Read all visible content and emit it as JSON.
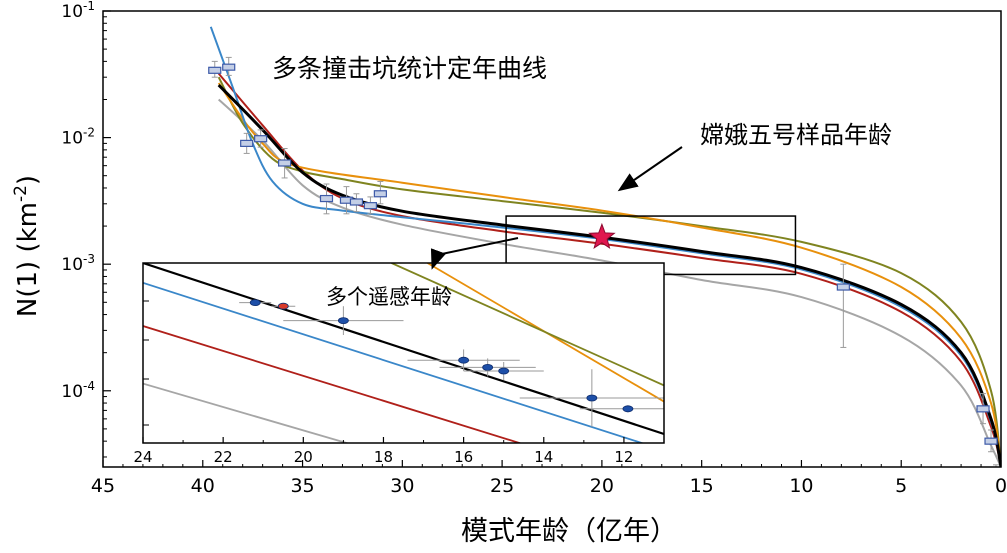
{
  "chart_data": [
    {
      "type": "line",
      "title": "",
      "xlabel": "模式年龄（亿年）",
      "ylabel": "N(1) (km-2)",
      "y_scale": "log",
      "x_reversed": true,
      "xlim": [
        45,
        0
      ],
      "ylim": [
        2.5e-05,
        0.1
      ],
      "x_ticks": [
        "45",
        "40",
        "35",
        "30",
        "25",
        "20",
        "15",
        "10",
        "5",
        "0"
      ],
      "y_ticks": [
        {
          "value": 0.1,
          "base": "10",
          "exp": "-1"
        },
        {
          "value": 0.01,
          "base": "10",
          "exp": "-2"
        },
        {
          "value": 0.001,
          "base": "10",
          "exp": "-3"
        },
        {
          "value": 0.0001,
          "base": "10",
          "exp": "-4"
        }
      ],
      "colors": {
        "black": "#000000",
        "blue": "#3a87c9",
        "red": "#b0201a",
        "orange": "#e8900c",
        "olive": "#7f8420",
        "gray": "#a6a6a6",
        "marker_fill": "#c4cfe6",
        "marker_stroke": "#3d5aa8",
        "star": "#e0174f"
      },
      "series": [
        {
          "color_key": "black",
          "x": [
            39.2,
            37,
            35,
            33,
            30,
            25,
            20,
            15,
            10,
            5,
            2,
            0.5,
            0
          ],
          "y": [
            0.026,
            0.0115,
            0.0053,
            0.0035,
            0.00262,
            0.00204,
            0.00163,
            0.00126,
            0.00094,
            0.00048,
            0.0002,
            6e-05,
            2.5e-05
          ]
        },
        {
          "color_key": "blue",
          "x": [
            39.6,
            38.5,
            37.5,
            36.5,
            35,
            33,
            30,
            25,
            20,
            15,
            10,
            5,
            2,
            0.5,
            0
          ],
          "y": [
            0.075,
            0.025,
            0.009,
            0.0045,
            0.003,
            0.00265,
            0.00235,
            0.00195,
            0.00158,
            0.00122,
            0.00091,
            0.00046,
            0.00019,
            5.7e-05,
            2.5e-05
          ]
        },
        {
          "color_key": "red",
          "x": [
            39.2,
            37,
            35,
            33,
            30,
            25,
            20,
            15,
            10,
            5,
            2,
            0.5,
            0
          ],
          "y": [
            0.032,
            0.0125,
            0.0055,
            0.0033,
            0.0024,
            0.00182,
            0.00145,
            0.00112,
            0.00084,
            0.00042,
            0.00017,
            5.2e-05,
            2.5e-05
          ]
        },
        {
          "color_key": "orange",
          "x": [
            39.2,
            38,
            37,
            36,
            34,
            30,
            25,
            20,
            15,
            10,
            5,
            2,
            0.5,
            0
          ],
          "y": [
            0.027,
            0.014,
            0.009,
            0.0065,
            0.0054,
            0.0044,
            0.0034,
            0.00265,
            0.00195,
            0.00135,
            0.00066,
            0.00026,
            8e-05,
            2.5e-05
          ]
        },
        {
          "color_key": "olive",
          "x": [
            39.2,
            38,
            36.5,
            35,
            33,
            30,
            25,
            20,
            15,
            10,
            5,
            2,
            0.5,
            0
          ],
          "y": [
            0.03,
            0.013,
            0.0068,
            0.0054,
            0.0047,
            0.0039,
            0.00315,
            0.00255,
            0.002,
            0.0015,
            0.00085,
            0.00035,
            0.0001,
            2.5e-05
          ]
        },
        {
          "color_key": "gray",
          "x": [
            39.2,
            37,
            35,
            33,
            30,
            25,
            20,
            15,
            10,
            5,
            2,
            0.5,
            0
          ],
          "y": [
            0.02,
            0.0095,
            0.0042,
            0.0028,
            0.00205,
            0.00145,
            0.00107,
            0.00075,
            0.00055,
            0.00027,
            0.00011,
            3.7e-05,
            2.5e-05
          ]
        }
      ],
      "data_points": [
        {
          "x": 39.4,
          "y": 0.034,
          "xerr": 0.2,
          "yerr_lo": 0.03,
          "yerr_hi": 0.04
        },
        {
          "x": 38.7,
          "y": 0.036,
          "xerr": 0.2,
          "yerr_lo": 0.031,
          "yerr_hi": 0.043
        },
        {
          "x": 37.8,
          "y": 0.009,
          "xerr": 0.2,
          "yerr_lo": 0.0075,
          "yerr_hi": 0.0108
        },
        {
          "x": 37.1,
          "y": 0.0098,
          "xerr": 0.2,
          "yerr_lo": 0.0084,
          "yerr_hi": 0.0115
        },
        {
          "x": 35.9,
          "y": 0.0063,
          "xerr": 0.2,
          "yerr_lo": 0.0048,
          "yerr_hi": 0.0082
        },
        {
          "x": 33.8,
          "y": 0.0033,
          "xerr": 0.2,
          "yerr_lo": 0.0025,
          "yerr_hi": 0.0043
        },
        {
          "x": 32.8,
          "y": 0.0032,
          "xerr": 0.2,
          "yerr_lo": 0.0025,
          "yerr_hi": 0.0041
        },
        {
          "x": 32.3,
          "y": 0.0031,
          "xerr": 0.2,
          "yerr_lo": 0.0026,
          "yerr_hi": 0.0036
        },
        {
          "x": 31.6,
          "y": 0.0029,
          "xerr": 0.2,
          "yerr_lo": 0.0025,
          "yerr_hi": 0.0034
        },
        {
          "x": 31.1,
          "y": 0.0036,
          "xerr": 0.2,
          "yerr_lo": 0.003,
          "yerr_hi": 0.0045
        },
        {
          "x": 7.9,
          "y": 0.00066,
          "xerr": 0.2,
          "yerr_lo": 0.00022,
          "yerr_hi": 0.001
        },
        {
          "x": 0.9,
          "y": 7.2e-05,
          "xerr": 0.2,
          "yerr_lo": 5.5e-05,
          "yerr_hi": 9.5e-05
        },
        {
          "x": 0.5,
          "y": 4e-05,
          "xerr": 0.2,
          "yerr_lo": 3.3e-05,
          "yerr_hi": 4.9e-05
        },
        {
          "x": 0.25,
          "y": 2.2e-05,
          "xerr": 0.2,
          "yerr_lo": 1.8e-05,
          "yerr_hi": 2.6e-05
        }
      ],
      "star": {
        "x": 20.0,
        "y": 0.00163
      },
      "zoom_box": {
        "x": [
          10.3,
          24.8
        ],
        "y": [
          0.00083,
          0.0024
        ]
      },
      "annotations": {
        "curves_label": "多条撞击坑统计定年曲线",
        "sample_age_label": "嫦娥五号样品年龄",
        "remote_sensing_label": "多个遥感年龄"
      }
    },
    {
      "type": "line",
      "title": "",
      "xlim": [
        24,
        11
      ],
      "ylim": [
        0,
        1
      ],
      "x_ticks": [
        "24",
        "22",
        "20",
        "18",
        "16",
        "14",
        "12"
      ],
      "series": [
        {
          "color_key": "black",
          "x": [
            24,
            11
          ],
          "y": [
            1.0,
            0.05
          ]
        },
        {
          "color_key": "blue",
          "x": [
            24,
            11
          ],
          "y": [
            0.89,
            -0.04
          ]
        },
        {
          "color_key": "red",
          "x": [
            24,
            11
          ],
          "y": [
            0.65,
            -0.25
          ]
        },
        {
          "color_key": "gray",
          "x": [
            24,
            18
          ],
          "y": [
            0.33,
            -0.06
          ]
        },
        {
          "color_key": "orange",
          "x": [
            16.9,
            11
          ],
          "y": [
            1.0,
            0.23
          ]
        },
        {
          "color_key": "olive",
          "x": [
            17.8,
            11
          ],
          "y": [
            1.0,
            0.32
          ]
        }
      ],
      "data_points": [
        {
          "x": 21.2,
          "y": 0.78,
          "xerr": 0.4,
          "yerr": 0.0,
          "color": "#1d4fa8"
        },
        {
          "x": 20.5,
          "y": 0.76,
          "xerr": 0.3,
          "yerr": 0.0,
          "color": "#d83a2a"
        },
        {
          "x": 19.0,
          "y": 0.68,
          "xerr": 1.5,
          "yerr": 0.08,
          "color": "#1d4fa8"
        },
        {
          "x": 16.0,
          "y": 0.46,
          "xerr": 1.4,
          "yerr": 0.06,
          "color": "#1d4fa8"
        },
        {
          "x": 15.4,
          "y": 0.42,
          "xerr": 1.2,
          "yerr": 0.05,
          "color": "#1d4fa8"
        },
        {
          "x": 15.0,
          "y": 0.4,
          "xerr": 1.0,
          "yerr": 0.05,
          "color": "#1d4fa8"
        },
        {
          "x": 12.8,
          "y": 0.25,
          "xerr": 1.8,
          "yerr": 0.16,
          "color": "#1d4fa8"
        },
        {
          "x": 11.9,
          "y": 0.19,
          "xerr": 1.2,
          "yerr": 0.02,
          "color": "#1d4fa8"
        }
      ]
    }
  ]
}
